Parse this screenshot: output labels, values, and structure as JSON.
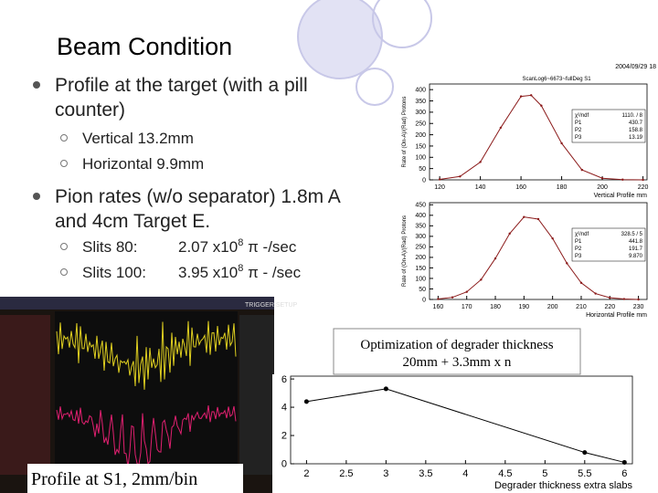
{
  "header": {
    "title": "Beam Condition"
  },
  "bullets": [
    {
      "lines": [
        "Profile at the target (with a pill",
        "counter)"
      ],
      "sub": [
        {
          "text": "Vertical 13.2mm"
        },
        {
          "text": "Horizontal 9.9mm"
        }
      ]
    },
    {
      "lines": [
        "Pion rates (w/o separator) 1.8m A",
        "and 4cm Target E."
      ],
      "sub": [
        {
          "label": "Slits 80:",
          "value": "2.07 x10",
          "exp": "8",
          "unit": " π -/sec"
        },
        {
          "label": "Slits 100:",
          "value": "3.95 x10",
          "exp": "8",
          "unit": " π - /sec"
        }
      ]
    }
  ],
  "plots": [
    {
      "type": "line",
      "date": "2004/09/29 18",
      "title": "ScanLog6~6673~fullDeg S1",
      "xlabel": "Vertical Profile mm",
      "ylabel": "Rate of (On-A)/(Rad) Protons",
      "xlim": [
        115,
        222
      ],
      "ylim": [
        0,
        425
      ],
      "xticks": [
        120,
        140,
        160,
        180,
        200,
        220
      ],
      "yticks": [
        0,
        50,
        100,
        150,
        200,
        250,
        300,
        350,
        400
      ],
      "x": [
        120,
        130,
        140,
        150,
        160,
        165,
        170,
        180,
        190,
        200,
        210,
        220
      ],
      "values": [
        2,
        15,
        79,
        231,
        370,
        375,
        329,
        162,
        44,
        7,
        1,
        0
      ],
      "color": "#8b1a1a",
      "fit": [
        {
          "name": "χ²/ndf",
          "value": "1110. / 8"
        },
        {
          "name": "P1",
          "value": "430.7"
        },
        {
          "name": "P2",
          "value": "158.8"
        },
        {
          "name": "P3",
          "value": "13.19"
        }
      ]
    },
    {
      "type": "line",
      "xlabel": "Horizontal Profile mm",
      "ylabel": "Rate of (On-A)/(Rad) Protons",
      "xlim": [
        157,
        233
      ],
      "ylim": [
        0,
        460
      ],
      "xticks": [
        160,
        170,
        180,
        190,
        200,
        210,
        220,
        230
      ],
      "yticks": [
        0,
        50,
        100,
        150,
        200,
        250,
        300,
        350,
        400,
        450
      ],
      "x": [
        160,
        165,
        170,
        175,
        180,
        185,
        190,
        195,
        200,
        205,
        210,
        215,
        220,
        225,
        230
      ],
      "values": [
        2,
        10,
        36,
        94,
        195,
        313,
        392,
        382,
        290,
        172,
        79,
        28,
        8,
        2,
        0
      ],
      "color": "#8b1a1a",
      "fit": [
        {
          "name": "χ²/ndf",
          "value": "328.5 / 5"
        },
        {
          "name": "P1",
          "value": "441.8"
        },
        {
          "name": "P2",
          "value": "191.7"
        },
        {
          "name": "P3",
          "value": "9.870"
        }
      ]
    },
    {
      "type": "scatter",
      "xlabel": "Degrader thickness extra slabs",
      "xlim": [
        1.8,
        6.1
      ],
      "ylim": [
        0,
        6.2
      ],
      "xticks": [
        2,
        2.5,
        3,
        3.5,
        4,
        4.5,
        5,
        5.5,
        6
      ],
      "yticks": [
        0,
        2,
        4,
        6
      ],
      "x": [
        2,
        3,
        5.5,
        6
      ],
      "values": [
        4.4,
        5.3,
        0.8,
        0.1
      ],
      "color": "#000000"
    }
  ],
  "note": {
    "lines": [
      "Optimization of degrader thickness",
      "20mm + 3.3mm x n"
    ]
  },
  "scope": {
    "header": "TRIGGER SETUP"
  },
  "caption": "Profile at S1, 2mm/bin"
}
